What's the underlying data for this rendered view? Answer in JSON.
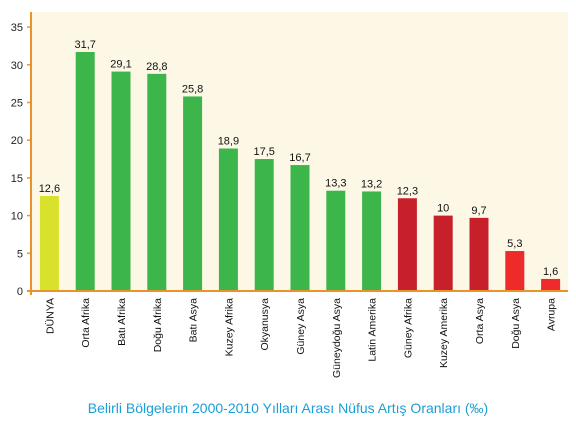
{
  "chart_data": {
    "type": "bar",
    "title": "Belirli Bölgelerin 2000-2010 Yılları Arası Nüfus Artış Oranları (‰)",
    "categories": [
      "DÜNYA",
      "Orta Afrika",
      "Batı Afrika",
      "Doğu Afrika",
      "Batı Asya",
      "Kuzey Afrika",
      "Okyanusya",
      "Güney Asya",
      "Güneydoğu Asya",
      "Latin Amerika",
      "Güney Afrika",
      "Kuzey Amerika",
      "Orta Asya",
      "Doğu Asya",
      "Avrupa"
    ],
    "values": [
      12.6,
      31.7,
      29.1,
      28.8,
      25.8,
      18.9,
      17.5,
      16.7,
      13.3,
      13.2,
      12.3,
      10,
      9.7,
      5.3,
      1.6
    ],
    "value_labels": [
      "12,6",
      "31,7",
      "29,1",
      "28,8",
      "25,8",
      "18,9",
      "17,5",
      "16,7",
      "13,3",
      "13,2",
      "12,3",
      "10",
      "9,7",
      "5,3",
      "1,6"
    ],
    "colors": [
      "#d8e22a",
      "#3cb54a",
      "#3cb54a",
      "#3cb54a",
      "#3cb54a",
      "#3cb54a",
      "#3cb54a",
      "#3cb54a",
      "#3cb54a",
      "#3cb54a",
      "#c8202a",
      "#c8202a",
      "#c8202a",
      "#ee2a2a",
      "#ee2a2a"
    ],
    "yticks": [
      0,
      5,
      10,
      15,
      20,
      25,
      30,
      35
    ],
    "ylim": [
      0,
      37
    ],
    "xlabel": "",
    "ylabel": "",
    "grid": false,
    "plot_background": "#fdf8e6",
    "axis_color": "#e8942a"
  }
}
